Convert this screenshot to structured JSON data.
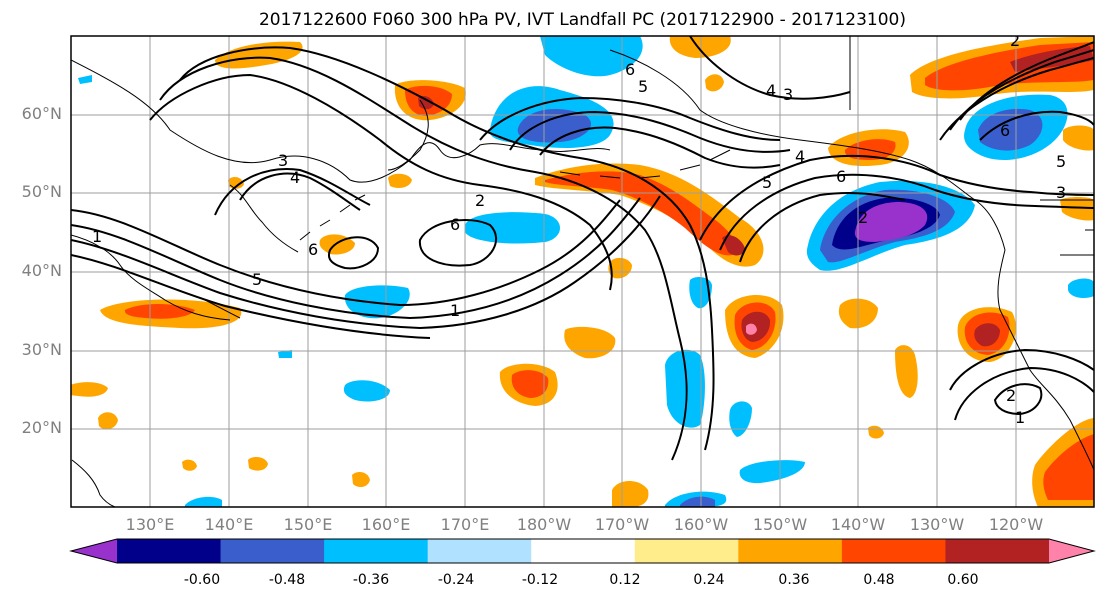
{
  "title": "2017122600 F060 300 hPa PV, IVT Landfall PC (2017122900 - 2017123100)",
  "lat_labels": [
    "60°N",
    "50°N",
    "40°N",
    "30°N",
    "20°N"
  ],
  "lon_labels": [
    "130°E",
    "140°E",
    "150°E",
    "160°E",
    "170°E",
    "180°W",
    "170°W",
    "160°W",
    "150°W",
    "140°W",
    "130°W",
    "120°W"
  ],
  "colorbar": {
    "ticks": [
      "-0.60",
      "-0.48",
      "-0.36",
      "-0.24",
      "-0.12",
      "0.12",
      "0.24",
      "0.36",
      "0.48",
      "0.60"
    ],
    "colors": [
      "#9932cc",
      "#00008b",
      "#3a5fcd",
      "#00bfff",
      "#b0e2ff",
      "#ffffff",
      "#ffec8b",
      "#ffa500",
      "#ff4500",
      "#b22222",
      "#ff82ab"
    ]
  },
  "contour_labels": [
    "1",
    "5",
    "6",
    "3",
    "4",
    "2",
    "6",
    "1",
    "4",
    "3",
    "6",
    "5",
    "4",
    "5",
    "6",
    "2",
    "6",
    "2",
    "1",
    "3",
    "5",
    "2"
  ],
  "map": {
    "extent": {
      "lon_min": 120,
      "lon_max": 250,
      "lat_min": 10,
      "lat_max": 70
    },
    "fields": [
      "300 hPa PV",
      "IVT Landfall PC"
    ]
  }
}
